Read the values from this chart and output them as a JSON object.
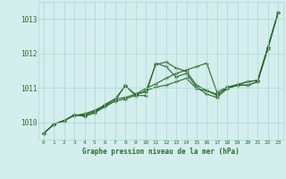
{
  "xlabel": "Graphe pression niveau de la mer (hPa)",
  "ylim": [
    1009.5,
    1013.5
  ],
  "xlim": [
    -0.5,
    23.5
  ],
  "yticks": [
    1010,
    1011,
    1012,
    1013
  ],
  "xticks": [
    0,
    1,
    2,
    3,
    4,
    5,
    6,
    7,
    8,
    9,
    10,
    11,
    12,
    13,
    14,
    15,
    16,
    17,
    18,
    19,
    20,
    21,
    22,
    23
  ],
  "bg_color": "#d4eeed",
  "grid_color": "#a8d8d4",
  "line_color": "#2d6a2d",
  "line1": [
    1009.68,
    1009.95,
    1010.05,
    1010.2,
    1010.25,
    1010.35,
    1010.5,
    1010.68,
    1010.72,
    1010.82,
    1010.98,
    1011.12,
    1011.28,
    1011.42,
    1011.52,
    1011.62,
    1011.72,
    1010.88,
    1011.02,
    1011.1,
    1011.18,
    1011.22,
    1012.18,
    1013.18
  ],
  "line2": [
    1009.68,
    1009.95,
    1010.05,
    1010.22,
    1010.18,
    1010.28,
    1010.52,
    1010.68,
    1011.05,
    1010.82,
    1010.88,
    1011.68,
    1011.75,
    1011.58,
    1011.48,
    1011.08,
    1010.92,
    1010.78,
    1011.02,
    1011.08,
    1011.18,
    1011.22,
    1012.18,
    1013.18
  ],
  "line3": [
    1009.68,
    1009.95,
    1010.05,
    1010.22,
    1010.18,
    1010.28,
    1010.45,
    1010.62,
    1011.08,
    1010.78,
    1010.78,
    1011.72,
    1011.62,
    1011.32,
    1011.42,
    1011.02,
    1010.82,
    1010.72,
    1010.98,
    1011.08,
    1011.08,
    1011.18,
    1012.18,
    1013.18
  ],
  "line4": [
    1009.68,
    1009.95,
    1010.05,
    1010.2,
    1010.22,
    1010.32,
    1010.48,
    1010.62,
    1010.68,
    1010.78,
    1010.92,
    1011.02,
    1011.08,
    1011.18,
    1011.28,
    1010.98,
    1010.92,
    1010.82,
    1010.98,
    1011.08,
    1011.08,
    1011.18,
    1012.12,
    1013.18
  ]
}
